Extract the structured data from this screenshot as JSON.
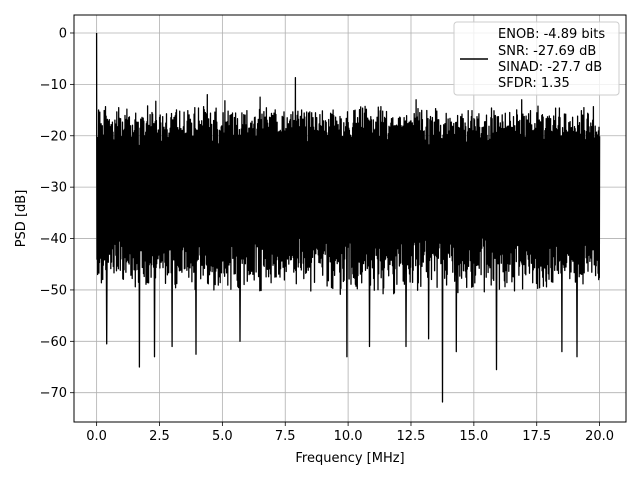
{
  "chart_data": {
    "type": "line",
    "xlabel": "Frequency [MHz]",
    "ylabel": "PSD [dB]",
    "xlim": [
      -0.9,
      21.05
    ],
    "ylim": [
      -75.7,
      3.5
    ],
    "xticks": [
      0.0,
      2.5,
      5.0,
      7.5,
      10.0,
      12.5,
      15.0,
      17.5,
      20.0
    ],
    "xtick_labels": [
      "0.0",
      "2.5",
      "5.0",
      "7.5",
      "10.0",
      "12.5",
      "15.0",
      "17.5",
      "20.0"
    ],
    "yticks": [
      0,
      -10,
      -20,
      -30,
      -40,
      -50,
      -60,
      -70
    ],
    "ytick_labels": [
      "0",
      "−10",
      "−20",
      "−30",
      "−40",
      "−50",
      "−60",
      "−70"
    ],
    "grid": true,
    "legend": {
      "placement": "top-right",
      "entries": [
        "ENOB: -4.89 bits",
        "SNR: -27.69 dB",
        "SINAD: -27.7 dB",
        "SFDR: 1.35"
      ]
    },
    "series": [
      {
        "color": "#000000",
        "x_range": [
          0.0,
          20.0
        ],
        "peak": {
          "x": 0.0,
          "y": 0.0
        },
        "upper_envelope": -16.5,
        "lower_envelope": -46.0,
        "spikes": [
          {
            "x": 0.05,
            "y": -42.0
          },
          {
            "x": 0.4,
            "y": -60.5
          },
          {
            "x": 1.7,
            "y": -65.0
          },
          {
            "x": 2.3,
            "y": -63.0
          },
          {
            "x": 3.0,
            "y": -61.0
          },
          {
            "x": 3.95,
            "y": -62.5
          },
          {
            "x": 5.7,
            "y": -60.0
          },
          {
            "x": 9.95,
            "y": -63.0
          },
          {
            "x": 10.85,
            "y": -61.0
          },
          {
            "x": 12.3,
            "y": -61.0
          },
          {
            "x": 13.2,
            "y": -59.5
          },
          {
            "x": 13.75,
            "y": -71.8
          },
          {
            "x": 14.3,
            "y": -62.0
          },
          {
            "x": 15.9,
            "y": -65.5
          },
          {
            "x": 18.5,
            "y": -62.0
          },
          {
            "x": 19.1,
            "y": -63.0
          },
          {
            "x": 2.35,
            "y": -13.3
          },
          {
            "x": 4.4,
            "y": -12.0
          },
          {
            "x": 5.1,
            "y": -13.2
          },
          {
            "x": 6.5,
            "y": -12.5
          },
          {
            "x": 7.9,
            "y": -8.7
          },
          {
            "x": 12.7,
            "y": -13.0
          },
          {
            "x": 16.9,
            "y": -13.0
          }
        ]
      }
    ]
  }
}
